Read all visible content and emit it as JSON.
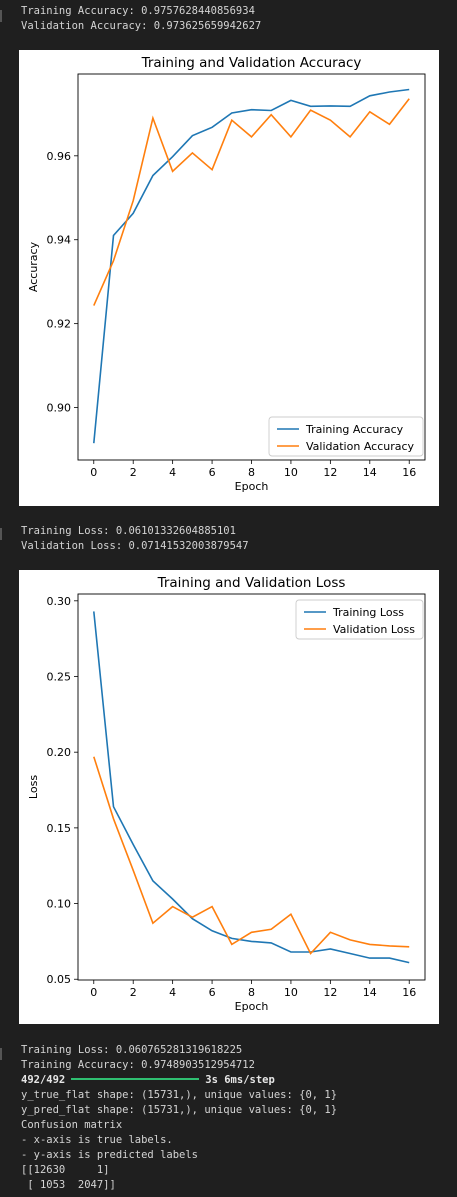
{
  "outputs": {
    "block1": [
      "Training Accuracy: 0.9757628440856934",
      "Validation Accuracy: 0.973625659942627"
    ],
    "block2": [
      "Training Loss: 0.06101332604885101",
      "Validation Loss: 0.07141532003879547"
    ],
    "block3_pre": [
      "Training Loss: 0.060765281319618225",
      "Training Accuracy: 0.9748903512954712"
    ],
    "progress": {
      "steps": "492/492",
      "timing": "3s 6ms/step",
      "fraction": 1.0
    },
    "block3_post": [
      "y_true_flat shape: (15731,), unique values: {0, 1}",
      "y_pred_flat shape: (15731,), unique values: {0, 1}",
      "Confusion matrix",
      "- x-axis is true labels.",
      "- y-axis is predicted labels",
      "[[12630     1]",
      " [ 1053  2047]]"
    ]
  },
  "colors": {
    "training": "#1f77b4",
    "validation": "#ff7f0e",
    "progress": "#2fbf71"
  },
  "chart_data": [
    {
      "type": "line",
      "title": "Training and Validation Accuracy",
      "xlabel": "Epoch",
      "ylabel": "Accuracy",
      "xlim": [
        -0.8,
        16.8
      ],
      "ylim": [
        0.8875,
        0.9795
      ],
      "xticks": [
        0,
        2,
        4,
        6,
        8,
        10,
        12,
        14,
        16
      ],
      "yticks": [
        0.9,
        0.92,
        0.94,
        0.96
      ],
      "ytick_labels": [
        "0.90",
        "0.92",
        "0.94",
        "0.96"
      ],
      "legend": "lower right",
      "grid": false,
      "x": [
        0,
        1,
        2,
        3,
        4,
        5,
        6,
        7,
        8,
        9,
        10,
        11,
        12,
        13,
        14,
        15,
        16
      ],
      "series": [
        {
          "name": "Training Accuracy",
          "values": [
            0.8915,
            0.941,
            0.9463,
            0.9553,
            0.9598,
            0.9648,
            0.9668,
            0.9702,
            0.971,
            0.9708,
            0.9732,
            0.9718,
            0.9719,
            0.9718,
            0.9743,
            0.9752,
            0.9758
          ]
        },
        {
          "name": "Validation Accuracy",
          "values": [
            0.9243,
            0.935,
            0.9493,
            0.969,
            0.9563,
            0.9607,
            0.9567,
            0.9685,
            0.9645,
            0.9698,
            0.9645,
            0.9709,
            0.9685,
            0.9645,
            0.9705,
            0.9675,
            0.9736
          ]
        }
      ]
    },
    {
      "type": "line",
      "title": "Training and Validation Loss",
      "xlabel": "Epoch",
      "ylabel": "Loss",
      "xlim": [
        -0.8,
        16.8
      ],
      "ylim": [
        0.0495,
        0.3045
      ],
      "xticks": [
        0,
        2,
        4,
        6,
        8,
        10,
        12,
        14,
        16
      ],
      "yticks": [
        0.05,
        0.1,
        0.15,
        0.2,
        0.25,
        0.3
      ],
      "ytick_labels": [
        "0.05",
        "0.10",
        "0.15",
        "0.20",
        "0.25",
        "0.30"
      ],
      "legend": "upper right",
      "grid": false,
      "x": [
        0,
        1,
        2,
        3,
        4,
        5,
        6,
        7,
        8,
        9,
        10,
        11,
        12,
        13,
        14,
        15,
        16
      ],
      "series": [
        {
          "name": "Training Loss",
          "values": [
            0.293,
            0.164,
            0.139,
            0.115,
            0.103,
            0.09,
            0.082,
            0.077,
            0.075,
            0.074,
            0.068,
            0.068,
            0.07,
            0.067,
            0.064,
            0.064,
            0.061
          ]
        },
        {
          "name": "Validation Loss",
          "values": [
            0.197,
            0.156,
            0.122,
            0.087,
            0.098,
            0.091,
            0.098,
            0.073,
            0.081,
            0.083,
            0.093,
            0.067,
            0.081,
            0.076,
            0.073,
            0.072,
            0.0714
          ]
        }
      ]
    }
  ]
}
